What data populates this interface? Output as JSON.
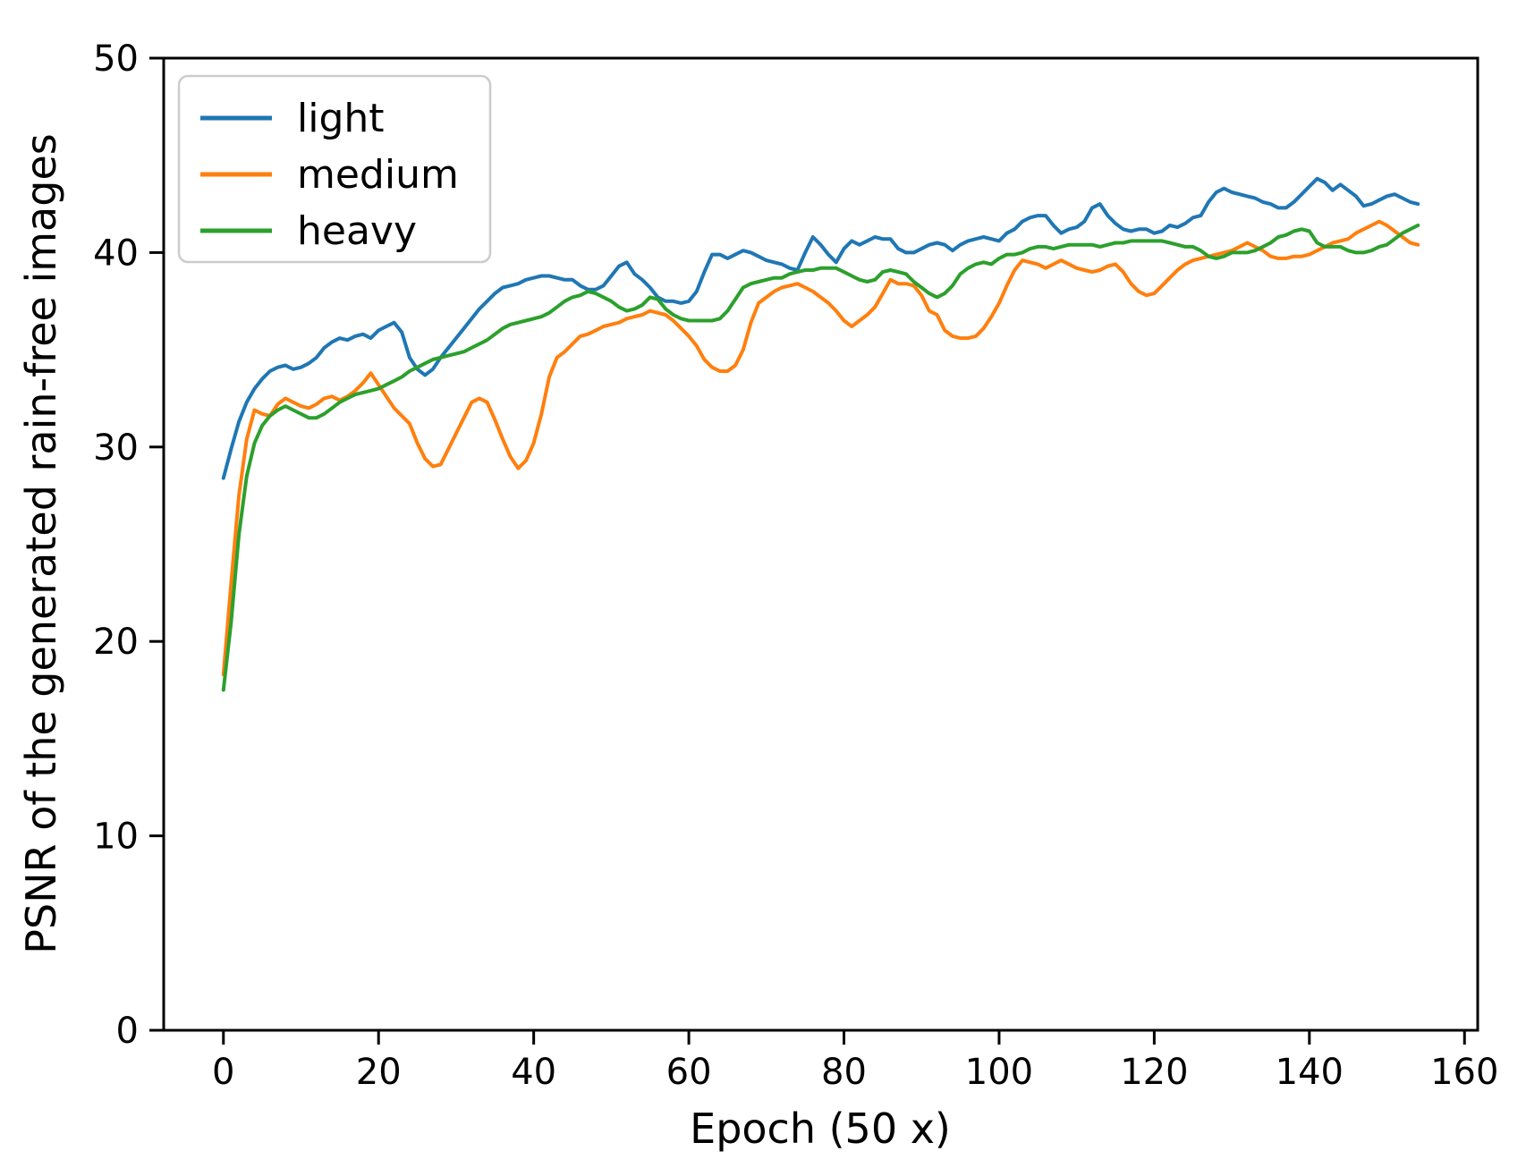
{
  "chart_data": {
    "type": "line",
    "title": "",
    "xlabel": "Epoch (50 x)",
    "ylabel": "PSNR of the generated rain-free images",
    "xlim": [
      -7.7,
      161.7
    ],
    "ylim": [
      0,
      50
    ],
    "xticks": [
      0,
      20,
      40,
      60,
      80,
      100,
      120,
      140,
      160
    ],
    "yticks": [
      0,
      10,
      20,
      30,
      40,
      50
    ],
    "grid": false,
    "legend_position": "upper left",
    "background_color": "#ffffff",
    "axis_color": "#000000",
    "x_start": 0,
    "x_step": 1,
    "series": [
      {
        "name": "light",
        "color": "#1f77b4",
        "values": [
          28.4,
          29.9,
          31.3,
          32.3,
          33.0,
          33.5,
          33.9,
          34.1,
          34.2,
          34.0,
          34.1,
          34.3,
          34.6,
          35.1,
          35.4,
          35.6,
          35.5,
          35.7,
          35.8,
          35.6,
          36.0,
          36.2,
          36.4,
          35.9,
          34.6,
          34.0,
          33.7,
          34.0,
          34.6,
          35.1,
          35.6,
          36.1,
          36.6,
          37.1,
          37.5,
          37.9,
          38.2,
          38.3,
          38.4,
          38.6,
          38.7,
          38.8,
          38.8,
          38.7,
          38.6,
          38.6,
          38.3,
          38.1,
          38.1,
          38.3,
          38.8,
          39.3,
          39.5,
          38.9,
          38.6,
          38.2,
          37.7,
          37.5,
          37.5,
          37.4,
          37.5,
          38.0,
          39.0,
          39.9,
          39.9,
          39.7,
          39.9,
          40.1,
          40.0,
          39.8,
          39.6,
          39.5,
          39.4,
          39.2,
          39.1,
          40.0,
          40.8,
          40.4,
          39.9,
          39.5,
          40.2,
          40.6,
          40.4,
          40.6,
          40.8,
          40.7,
          40.7,
          40.2,
          40.0,
          40.0,
          40.2,
          40.4,
          40.5,
          40.4,
          40.1,
          40.4,
          40.6,
          40.7,
          40.8,
          40.7,
          40.6,
          41.0,
          41.2,
          41.6,
          41.8,
          41.9,
          41.9,
          41.4,
          41.0,
          41.2,
          41.3,
          41.6,
          42.3,
          42.5,
          41.9,
          41.5,
          41.2,
          41.1,
          41.2,
          41.2,
          41.0,
          41.1,
          41.4,
          41.3,
          41.5,
          41.8,
          41.9,
          42.6,
          43.1,
          43.3,
          43.1,
          43.0,
          42.9,
          42.8,
          42.6,
          42.5,
          42.3,
          42.3,
          42.6,
          43.0,
          43.4,
          43.8,
          43.6,
          43.2,
          43.5,
          43.2,
          42.9,
          42.4,
          42.5,
          42.7,
          42.9,
          43.0,
          42.8,
          42.6,
          42.5
        ]
      },
      {
        "name": "medium",
        "color": "#ff7f0e",
        "values": [
          18.3,
          23.0,
          27.5,
          30.4,
          31.9,
          31.7,
          31.6,
          32.2,
          32.5,
          32.3,
          32.1,
          32.0,
          32.2,
          32.5,
          32.6,
          32.4,
          32.6,
          32.9,
          33.3,
          33.8,
          33.2,
          32.6,
          32.0,
          31.6,
          31.2,
          30.2,
          29.4,
          29.0,
          29.1,
          29.9,
          30.7,
          31.5,
          32.3,
          32.5,
          32.3,
          31.4,
          30.4,
          29.5,
          28.9,
          29.3,
          30.2,
          31.7,
          33.6,
          34.6,
          34.9,
          35.3,
          35.7,
          35.8,
          36.0,
          36.2,
          36.3,
          36.4,
          36.6,
          36.7,
          36.8,
          37.0,
          36.9,
          36.8,
          36.5,
          36.1,
          35.7,
          35.2,
          34.5,
          34.1,
          33.9,
          33.9,
          34.2,
          35.0,
          36.4,
          37.4,
          37.7,
          38.0,
          38.2,
          38.3,
          38.4,
          38.2,
          38.0,
          37.7,
          37.4,
          37.0,
          36.5,
          36.2,
          36.5,
          36.8,
          37.2,
          37.9,
          38.6,
          38.4,
          38.4,
          38.3,
          37.8,
          37.0,
          36.8,
          36.0,
          35.7,
          35.6,
          35.6,
          35.7,
          36.1,
          36.7,
          37.4,
          38.3,
          39.1,
          39.6,
          39.5,
          39.4,
          39.2,
          39.4,
          39.6,
          39.4,
          39.2,
          39.1,
          39.0,
          39.1,
          39.3,
          39.4,
          39.0,
          38.4,
          38.0,
          37.8,
          37.9,
          38.3,
          38.7,
          39.1,
          39.4,
          39.6,
          39.7,
          39.8,
          39.9,
          40.0,
          40.1,
          40.3,
          40.5,
          40.3,
          40.1,
          39.8,
          39.7,
          39.7,
          39.8,
          39.8,
          39.9,
          40.1,
          40.3,
          40.5,
          40.6,
          40.7,
          41.0,
          41.2,
          41.4,
          41.6,
          41.4,
          41.1,
          40.8,
          40.5,
          40.4
        ]
      },
      {
        "name": "heavy",
        "color": "#2ca02c",
        "values": [
          17.5,
          21.0,
          25.5,
          28.5,
          30.2,
          31.1,
          31.6,
          31.9,
          32.1,
          31.9,
          31.7,
          31.5,
          31.5,
          31.7,
          32.0,
          32.3,
          32.5,
          32.7,
          32.8,
          32.9,
          33.0,
          33.2,
          33.4,
          33.6,
          33.9,
          34.1,
          34.3,
          34.5,
          34.6,
          34.7,
          34.8,
          34.9,
          35.1,
          35.3,
          35.5,
          35.8,
          36.1,
          36.3,
          36.4,
          36.5,
          36.6,
          36.7,
          36.9,
          37.2,
          37.5,
          37.7,
          37.8,
          38.0,
          37.9,
          37.7,
          37.5,
          37.2,
          37.0,
          37.1,
          37.3,
          37.7,
          37.6,
          37.1,
          36.8,
          36.6,
          36.5,
          36.5,
          36.5,
          36.5,
          36.6,
          37.0,
          37.6,
          38.2,
          38.4,
          38.5,
          38.6,
          38.7,
          38.7,
          38.9,
          39.0,
          39.1,
          39.1,
          39.2,
          39.2,
          39.2,
          39.0,
          38.8,
          38.6,
          38.5,
          38.6,
          39.0,
          39.1,
          39.0,
          38.9,
          38.5,
          38.2,
          37.9,
          37.7,
          37.9,
          38.3,
          38.9,
          39.2,
          39.4,
          39.5,
          39.4,
          39.7,
          39.9,
          39.9,
          40.0,
          40.2,
          40.3,
          40.3,
          40.2,
          40.3,
          40.4,
          40.4,
          40.4,
          40.4,
          40.3,
          40.4,
          40.5,
          40.5,
          40.6,
          40.6,
          40.6,
          40.6,
          40.6,
          40.5,
          40.4,
          40.3,
          40.3,
          40.1,
          39.8,
          39.7,
          39.8,
          40.0,
          40.0,
          40.0,
          40.1,
          40.3,
          40.5,
          40.8,
          40.9,
          41.1,
          41.2,
          41.1,
          40.5,
          40.3,
          40.3,
          40.3,
          40.1,
          40.0,
          40.0,
          40.1,
          40.3,
          40.4,
          40.7,
          41.0,
          41.2,
          41.4
        ]
      }
    ]
  }
}
